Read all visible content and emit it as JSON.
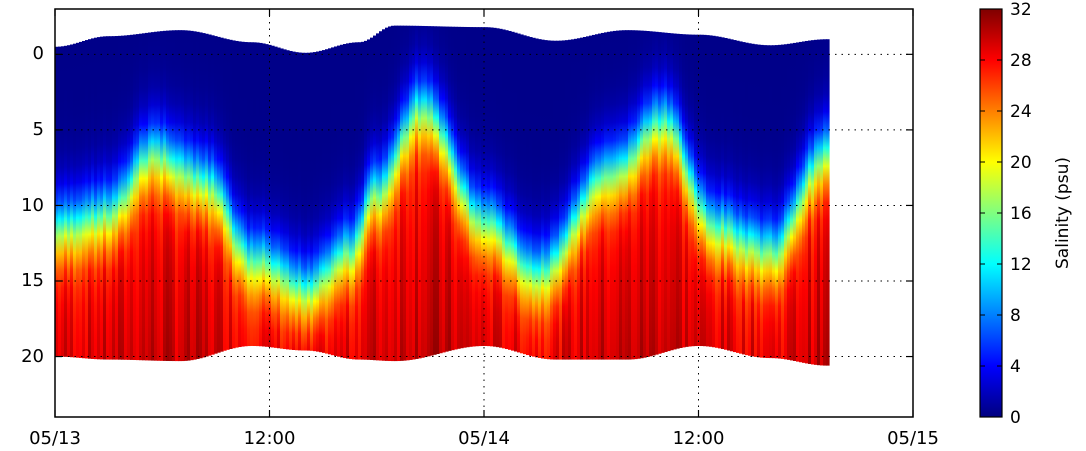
{
  "chart_data": {
    "type": "heatmap",
    "title": "",
    "xlabel": "",
    "ylabel": "",
    "x_tick_labels": [
      "05/13",
      "12:00",
      "05/14",
      "12:00",
      "05/15"
    ],
    "x_ticks_hours": [
      0,
      12,
      24,
      36,
      48
    ],
    "xlim_hours": [
      0,
      48
    ],
    "data_end_hours": 43.2,
    "y_ticks": [
      0,
      5,
      10,
      15,
      20
    ],
    "ylim": [
      24,
      -3
    ],
    "y_inverted": true,
    "grid": "dotted",
    "colorbar": {
      "label": "Salinity (psu)",
      "ticks": [
        0,
        4,
        8,
        12,
        16,
        20,
        24,
        28,
        32
      ],
      "vmin": 0,
      "vmax": 32,
      "colormap": "jet"
    },
    "surface": {
      "hours": [
        0,
        3,
        7,
        11,
        14,
        17,
        19,
        24,
        28,
        32,
        36,
        40,
        43.2
      ],
      "depth": [
        -0.5,
        -1.2,
        -1.6,
        -0.8,
        -0.1,
        -0.8,
        -1.9,
        -1.8,
        -0.9,
        -1.6,
        -1.3,
        -0.6,
        -1.0
      ]
    },
    "bottom": {
      "hours": [
        0,
        3,
        7,
        11,
        14,
        17,
        19,
        24,
        28,
        32,
        36,
        40,
        43.2
      ],
      "depth": [
        20,
        20.2,
        20.3,
        19.3,
        19.6,
        20.2,
        20.3,
        19.3,
        20.2,
        20.2,
        19.3,
        20.1,
        20.6
      ]
    },
    "halocline_depth": {
      "hours": [
        0,
        3,
        5.5,
        8.5,
        11,
        14,
        16.5,
        18,
        20.5,
        24,
        27,
        31,
        34,
        37,
        40,
        43.2
      ],
      "depth": [
        11.5,
        10.5,
        6.5,
        8.5,
        13.5,
        15.5,
        13.0,
        9.0,
        3.5,
        11.0,
        14.5,
        8.0,
        4.5,
        11.5,
        13.0,
        6.5
      ]
    },
    "colors": {
      "axis": "#000000",
      "background": "#ffffff"
    }
  }
}
